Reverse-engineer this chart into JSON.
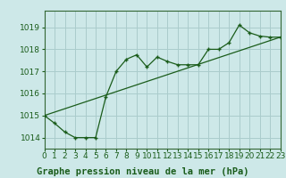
{
  "title": "Graphe pression niveau de la mer (hPa)",
  "bg_color": "#cde8e8",
  "grid_color": "#aacccc",
  "line_color": "#1a5c1a",
  "border_color": "#336633",
  "x_min": 0,
  "x_max": 23,
  "y_min": 1013.5,
  "y_max": 1019.75,
  "y_ticks": [
    1014,
    1015,
    1016,
    1017,
    1018,
    1019
  ],
  "x_ticks": [
    0,
    1,
    2,
    3,
    4,
    5,
    6,
    7,
    8,
    9,
    10,
    11,
    12,
    13,
    14,
    15,
    16,
    17,
    18,
    19,
    20,
    21,
    22,
    23
  ],
  "series1_x": [
    0,
    1,
    2,
    3,
    4,
    5,
    6,
    7,
    8,
    9,
    10,
    11,
    12,
    13,
    14,
    15,
    16,
    17,
    18,
    19,
    20,
    21,
    22,
    23
  ],
  "series1_y": [
    1015.0,
    1014.65,
    1014.25,
    1014.0,
    1014.0,
    1014.0,
    1015.85,
    1017.0,
    1017.55,
    1017.75,
    1017.2,
    1017.65,
    1017.45,
    1017.3,
    1017.3,
    1017.3,
    1018.0,
    1018.0,
    1018.3,
    1019.1,
    1018.75,
    1018.6,
    1018.55,
    1018.55
  ],
  "series2_x": [
    0,
    23
  ],
  "series2_y": [
    1015.0,
    1018.55
  ],
  "title_fontsize": 7.5,
  "tick_fontsize": 6.5
}
